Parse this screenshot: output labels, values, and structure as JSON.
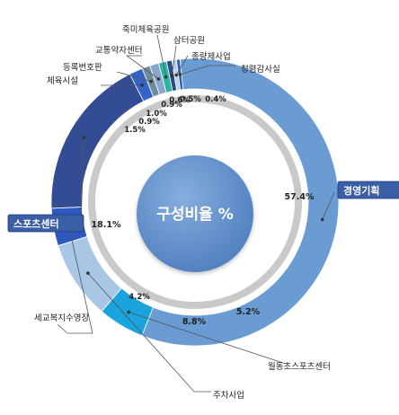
{
  "chart_data": {
    "type": "pie",
    "title": "구성비율 %",
    "slices": [
      {
        "label": "경영기획",
        "value": 57.4,
        "value_text": "57.4%",
        "color": "#6a9bd2"
      },
      {
        "label": "월동초스포츠센터",
        "value": 5.2,
        "value_text": "5.2%",
        "color": "#19a4dd"
      },
      {
        "label": "주차사업",
        "value": 8.8,
        "value_text": "8.8%",
        "color": "#a9c6e4"
      },
      {
        "label": "세교복지수영장",
        "value": 4.2,
        "value_text": "4.2%",
        "color": "#2d58bf"
      },
      {
        "label": "스포츠센터",
        "value": 18.1,
        "value_text": "18.1%",
        "color": "#344c94"
      },
      {
        "label": "체육시설",
        "value": 1.5,
        "value_text": "1.5%",
        "color": "#3264c8"
      },
      {
        "label": "등록번호판",
        "value": 0.9,
        "value_text": "0.9%",
        "color": "#6f8c9c"
      },
      {
        "label": "교통약자센터",
        "value": 1.0,
        "value_text": "1.0%",
        "color": "#89a7ce"
      },
      {
        "label": "죽미체육공원",
        "value": 0.9,
        "value_text": "0.9%",
        "color": "#2bb5a4"
      },
      {
        "label": "삼터공원",
        "value": 0.6,
        "value_text": "0.6%",
        "color": "#2e4a8a"
      },
      {
        "label": "종량제사업",
        "value": 0.5,
        "value_text": "0.5%",
        "color": "#b9d0eb"
      },
      {
        "label": "청렴감사실",
        "value": 0.4,
        "value_text": "0.4%",
        "color": "#2f5ec3"
      }
    ]
  }
}
